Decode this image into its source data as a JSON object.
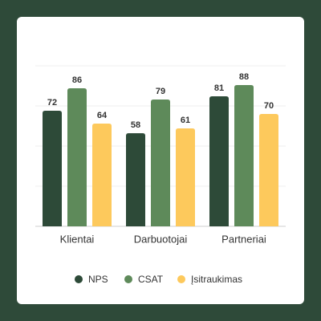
{
  "chart_data": {
    "type": "bar",
    "categories": [
      "Klientai",
      "Darbuotojai",
      "Partneriai"
    ],
    "series": [
      {
        "name": "NPS",
        "color": "#2d4a38",
        "values": [
          72,
          58,
          81
        ]
      },
      {
        "name": "CSAT",
        "color": "#5e8a5a",
        "values": [
          86,
          79,
          88
        ]
      },
      {
        "name": "Įsitraukimas",
        "color": "#fdc95c",
        "values": [
          64,
          61,
          70
        ]
      }
    ],
    "ylim": [
      0,
      100
    ],
    "yticks": [
      0,
      25,
      50,
      75,
      100
    ],
    "grid": true
  }
}
